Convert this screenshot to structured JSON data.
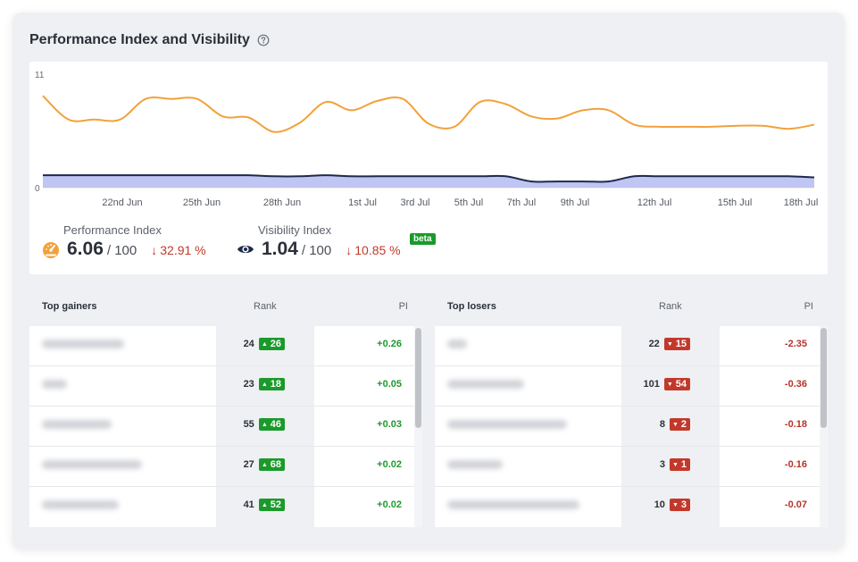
{
  "widget": {
    "title": "Performance Index and Visibility",
    "help_icon": "question-circle-icon"
  },
  "chart_data": {
    "type": "line",
    "ylim": [
      0,
      11
    ],
    "y_ticks": [
      "11",
      "0"
    ],
    "x_tick_labels": [
      "22nd Jun",
      "25th Jun",
      "28th Jun",
      "1st Jul",
      "3rd Jul",
      "5th Jul",
      "7th Jul",
      "9th Jul",
      "12th Jul",
      "15th Jul",
      "18th Jul"
    ],
    "series": [
      {
        "color": "#f2a13c",
        "values": [
          8.9,
          6.6,
          6.6,
          6.6,
          8.6,
          8.6,
          8.6,
          6.9,
          6.8,
          5.4,
          6.3,
          8.3,
          7.5,
          8.4,
          8.6,
          6.2,
          5.9,
          8.3,
          8.1,
          6.9,
          6.7,
          7.5,
          7.5,
          6.1,
          5.9,
          5.9,
          5.9,
          6.0,
          6.0,
          5.7,
          6.1
        ]
      },
      {
        "color": "#1e2a4a",
        "fill": "#aab3f0",
        "values": [
          1.2,
          1.2,
          1.2,
          1.2,
          1.2,
          1.2,
          1.2,
          1.2,
          1.2,
          1.1,
          1.1,
          1.2,
          1.1,
          1.1,
          1.1,
          1.1,
          1.1,
          1.1,
          1.1,
          0.6,
          0.6,
          0.6,
          0.6,
          1.1,
          1.1,
          1.1,
          1.1,
          1.1,
          1.1,
          1.1,
          1.0
        ]
      }
    ]
  },
  "metrics": {
    "performance": {
      "label": "Performance Index",
      "value": "6.06",
      "max": "/ 100",
      "delta": "32.91 %",
      "delta_arrow": "↓",
      "icon": "speedometer-icon",
      "icon_color": "#f2a13c"
    },
    "visibility": {
      "label": "Visibility Index",
      "value": "1.04",
      "max": "/ 100",
      "delta": "10.85 %",
      "delta_arrow": "↓",
      "icon": "eye-icon",
      "badge": "beta"
    }
  },
  "gainers": {
    "header": {
      "name": "Top gainers",
      "rank": "Rank",
      "pi": "PI"
    },
    "rows": [
      {
        "rank": "24",
        "change": "26",
        "pi": "+0.26"
      },
      {
        "rank": "23",
        "change": "18",
        "pi": "+0.05"
      },
      {
        "rank": "55",
        "change": "46",
        "pi": "+0.03"
      },
      {
        "rank": "27",
        "change": "68",
        "pi": "+0.02"
      },
      {
        "rank": "41",
        "change": "52",
        "pi": "+0.02"
      }
    ]
  },
  "losers": {
    "header": {
      "name": "Top losers",
      "rank": "Rank",
      "pi": "PI"
    },
    "rows": [
      {
        "rank": "22",
        "change": "15",
        "pi": "-2.35"
      },
      {
        "rank": "101",
        "change": "54",
        "pi": "-0.36"
      },
      {
        "rank": "8",
        "change": "2",
        "pi": "-0.18"
      },
      {
        "rank": "3",
        "change": "1",
        "pi": "-0.16"
      },
      {
        "rank": "10",
        "change": "3",
        "pi": "-0.07"
      }
    ]
  },
  "colors": {
    "up": "#1a9a2a",
    "down": "#c2392b"
  }
}
